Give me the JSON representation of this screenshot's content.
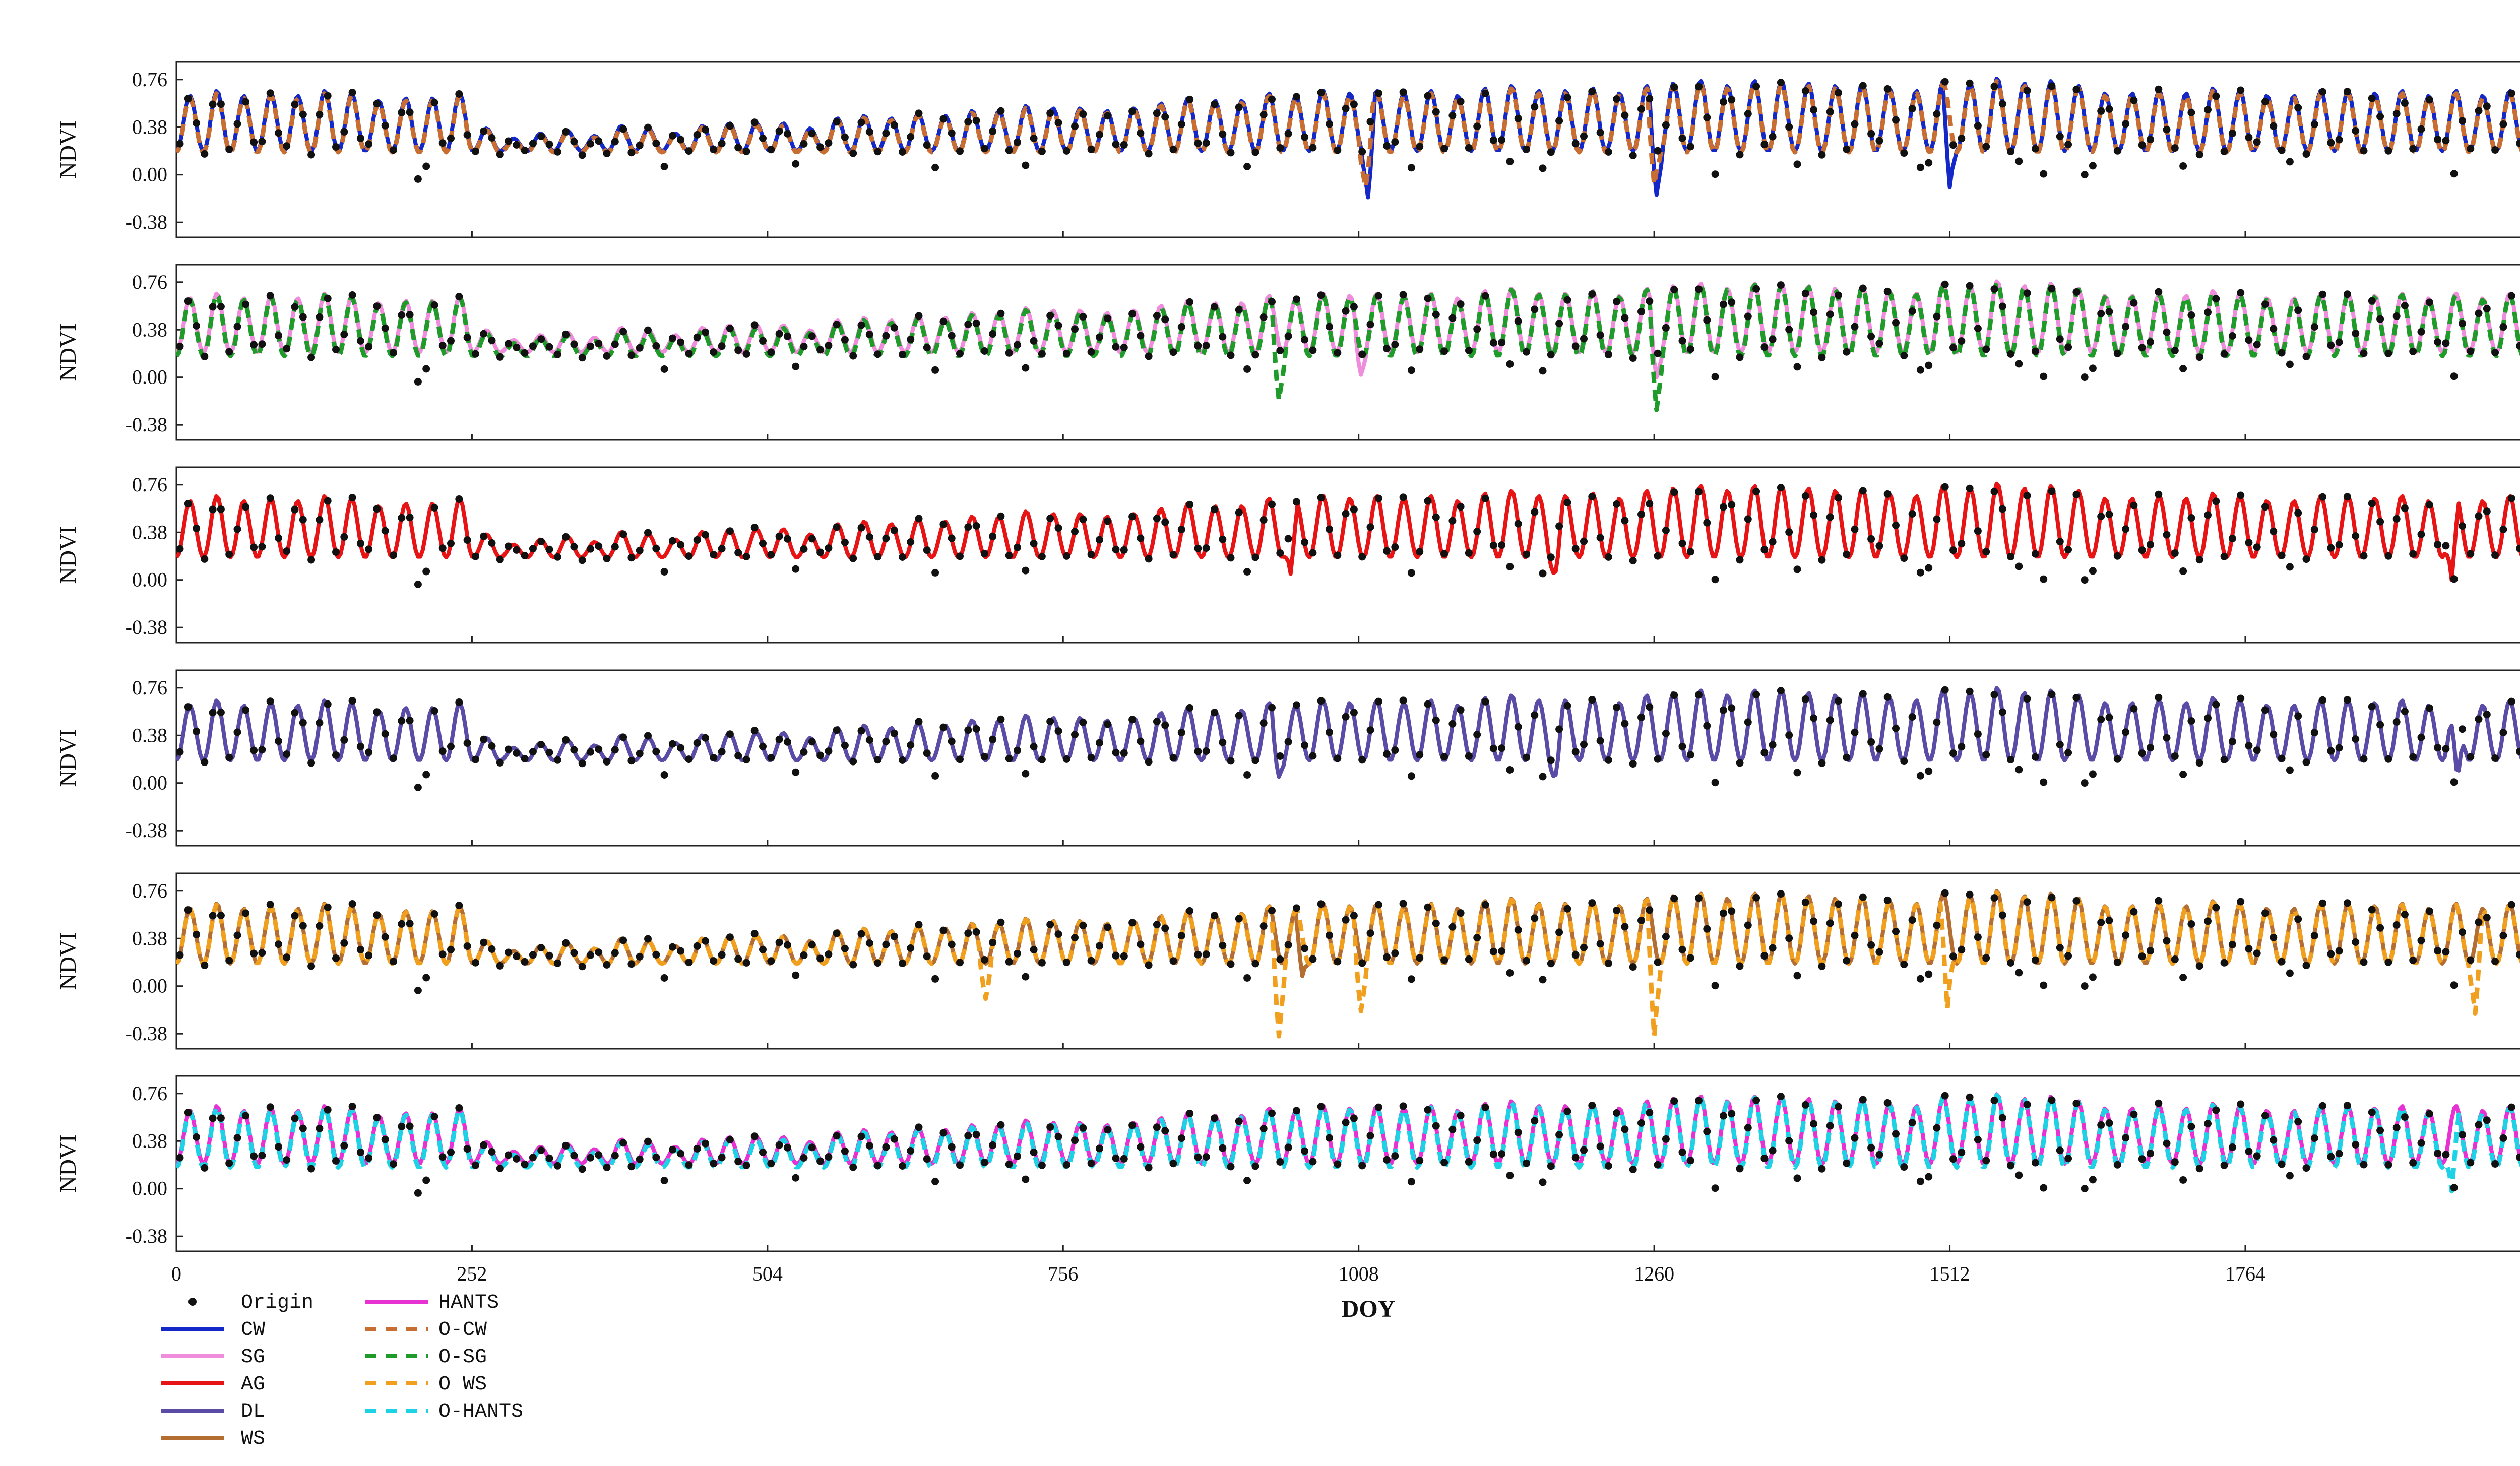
{
  "chart_data": {
    "type": "line",
    "title": "",
    "xlabel": "DOY",
    "ylabel": "NDVI",
    "xlim": [
      0,
      2024
    ],
    "ylim": [
      -0.5,
      0.9
    ],
    "x_ticks": [
      0,
      252,
      504,
      756,
      1008,
      1260,
      1512,
      1764,
      2016
    ],
    "x_tick_labels": [
      "0",
      "252",
      "504",
      "756",
      "1008",
      "1260",
      "1512",
      "1764",
      "2016"
    ],
    "y_ticks": [
      0.76,
      0.38,
      0.0,
      -0.38
    ],
    "y_tick_labels": [
      "0.76",
      "0.38",
      "0.00",
      "-0.38"
    ],
    "colors": {
      "origin": "#111111",
      "CW": "#1428c8",
      "SG": "#f08cdc",
      "AG": "#e61414",
      "DL": "#5a4ba6",
      "WS": "#b46e32",
      "HANTS": "#e632d2",
      "O-CW": "#c86e32",
      "O-SG": "#1e9b28",
      "O WS": "#f0a01e",
      "O-HANTS": "#1ed2e6"
    },
    "panels": [
      {
        "id": "panel-1",
        "series": [
          "CW",
          "O-CW"
        ]
      },
      {
        "id": "panel-2",
        "series": [
          "SG",
          "O-SG"
        ]
      },
      {
        "id": "panel-3",
        "series": [
          "AG"
        ]
      },
      {
        "id": "panel-4",
        "series": [
          "DL"
        ]
      },
      {
        "id": "panel-5",
        "series": [
          "WS",
          "O WS"
        ]
      },
      {
        "id": "panel-6",
        "series": [
          "HANTS",
          "O-HANTS"
        ]
      }
    ],
    "series_generation": {
      "period_days": 23,
      "note": "Approximate annual-cycle NDVI profile; peak and trough amplitudes per year as read from figure",
      "peaks": [
        0.62,
        0.66,
        0.62,
        0.64,
        0.62,
        0.66,
        0.64,
        0.58,
        0.6,
        0.6,
        0.64,
        0.36,
        0.28,
        0.32,
        0.34,
        0.3,
        0.38,
        0.36,
        0.32,
        0.38,
        0.4,
        0.4,
        0.4,
        0.36,
        0.44,
        0.46,
        0.44,
        0.48,
        0.46,
        0.5,
        0.5,
        0.54,
        0.52,
        0.52,
        0.5,
        0.52,
        0.56,
        0.6,
        0.58,
        0.58,
        0.64,
        0.62,
        0.66,
        0.64,
        0.66,
        0.64,
        0.66,
        0.62,
        0.68,
        0.7,
        0.66,
        0.66,
        0.68,
        0.64,
        0.7,
        0.72,
        0.74,
        0.7,
        0.74,
        0.74,
        0.72,
        0.7,
        0.72,
        0.68,
        0.66,
        0.74,
        0.72,
        0.76,
        0.72,
        0.74,
        0.7,
        0.64,
        0.64,
        0.66,
        0.64,
        0.68,
        0.66,
        0.62,
        0.62,
        0.66,
        0.66,
        0.64,
        0.66,
        0.62,
        0.66,
        0.62,
        0.66,
        0.64,
        0.68,
        0.8,
        0.8,
        0.78,
        0.8,
        0.76,
        0.8,
        0.8,
        0.78,
        0.76,
        0.78,
        0.8,
        0.78,
        0.76,
        0.76,
        0.72,
        0.74,
        0.7,
        0.72,
        0.66,
        0.7,
        0.7,
        0.68,
        0.7,
        0.7,
        0.68,
        0.66,
        0.66,
        0.68,
        0.68,
        0.7,
        0.68
      ],
      "trough": 0.18
    }
  },
  "legend": {
    "col1": [
      {
        "key": "origin",
        "label": "Origin",
        "style": "dot"
      },
      {
        "key": "CW",
        "label": "CW",
        "style": "solid"
      },
      {
        "key": "SG",
        "label": "SG",
        "style": "solid"
      },
      {
        "key": "AG",
        "label": "AG",
        "style": "solid"
      },
      {
        "key": "DL",
        "label": "DL",
        "style": "solid"
      },
      {
        "key": "WS",
        "label": "WS",
        "style": "solid"
      }
    ],
    "col2": [
      {
        "key": "HANTS",
        "label": "HANTS",
        "style": "solid"
      },
      {
        "key": "O-CW",
        "label": "O-CW",
        "style": "dashed"
      },
      {
        "key": "O-SG",
        "label": "O-SG",
        "style": "dashed"
      },
      {
        "key": "O WS",
        "label": "O WS",
        "style": "dashed"
      },
      {
        "key": "O-HANTS",
        "label": "O-HANTS",
        "style": "dashed"
      }
    ]
  }
}
